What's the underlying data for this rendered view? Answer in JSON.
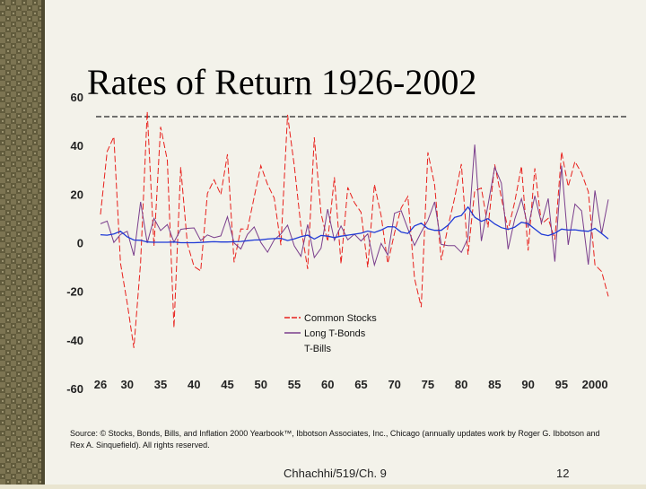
{
  "slide": {
    "title": "Rates of Return 1926-2002",
    "source_text": "Source: © Stocks, Bonds, Bills, and Inflation 2000 Yearbook™, Ibbotson Associates, Inc., Chicago (annually updates work by Roger G. Ibbotson and Rex A. Sinquefield). All rights reserved.",
    "footer_left": "Chhachhi/519/Ch. 9",
    "page_number": "12"
  },
  "colors": {
    "stocks": "#e8201c",
    "bonds": "#7a3e8c",
    "bills": "#1f3ad6",
    "bar": "#6f6a4a"
  },
  "chart_data": {
    "type": "line",
    "title": "Rates of Return 1926-2002",
    "x_ticks": [
      "26",
      "30",
      "35",
      "40",
      "45",
      "50",
      "55",
      "60",
      "65",
      "70",
      "75",
      "80",
      "85",
      "90",
      "95",
      "2000"
    ],
    "x_tick_years": [
      1926,
      1930,
      1935,
      1940,
      1945,
      1950,
      1955,
      1960,
      1965,
      1970,
      1975,
      1980,
      1985,
      1990,
      1995,
      2000
    ],
    "y_ticks": [
      "60",
      "40",
      "20",
      "0",
      "-20",
      "-40",
      "-60"
    ],
    "y_tick_values": [
      60,
      40,
      20,
      0,
      -20,
      -40,
      -60
    ],
    "xlim": [
      1926,
      2002
    ],
    "ylim": [
      -60,
      60
    ],
    "legend": [
      "Common Stocks",
      "Long T-Bonds",
      "T-Bills"
    ],
    "series": [
      {
        "name": "Common Stocks",
        "style": "dashed",
        "years": [
          1926,
          1927,
          1928,
          1929,
          1930,
          1931,
          1932,
          1933,
          1934,
          1935,
          1936,
          1937,
          1938,
          1939,
          1940,
          1941,
          1942,
          1943,
          1944,
          1945,
          1946,
          1947,
          1948,
          1949,
          1950,
          1951,
          1952,
          1953,
          1954,
          1955,
          1956,
          1957,
          1958,
          1959,
          1960,
          1961,
          1962,
          1963,
          1964,
          1965,
          1966,
          1967,
          1968,
          1969,
          1970,
          1971,
          1972,
          1973,
          1974,
          1975,
          1976,
          1977,
          1978,
          1979,
          1980,
          1981,
          1982,
          1983,
          1984,
          1985,
          1986,
          1987,
          1988,
          1989,
          1990,
          1991,
          1992,
          1993,
          1994,
          1995,
          1996,
          1997,
          1998,
          1999,
          2000,
          2001,
          2002
        ],
        "values": [
          11.6,
          37.5,
          43.6,
          -8.4,
          -24.9,
          -43.3,
          -8.2,
          54.0,
          -1.4,
          47.7,
          33.9,
          -35.0,
          31.1,
          -0.4,
          -9.8,
          -11.6,
          20.3,
          25.9,
          19.8,
          36.4,
          -8.1,
          5.7,
          5.5,
          18.8,
          31.7,
          24.0,
          18.4,
          -1.0,
          52.6,
          31.6,
          6.6,
          -10.8,
          43.4,
          12.0,
          0.5,
          26.9,
          -8.7,
          22.8,
          16.5,
          12.5,
          -10.1,
          24.0,
          11.1,
          -8.5,
          4.0,
          14.3,
          19.0,
          -14.7,
          -26.5,
          37.2,
          23.8,
          -7.2,
          6.6,
          18.4,
          32.4,
          -4.9,
          21.4,
          22.5,
          6.3,
          32.2,
          18.5,
          5.2,
          16.8,
          31.5,
          -3.2,
          30.6,
          7.7,
          10.0,
          1.3,
          37.4,
          23.1,
          33.4,
          28.6,
          21.0,
          -9.1,
          -11.9,
          -22.1
        ]
      },
      {
        "name": "Long T-Bonds",
        "style": "solid",
        "years": [
          1926,
          1927,
          1928,
          1929,
          1930,
          1931,
          1932,
          1933,
          1934,
          1935,
          1936,
          1937,
          1938,
          1939,
          1940,
          1941,
          1942,
          1943,
          1944,
          1945,
          1946,
          1947,
          1948,
          1949,
          1950,
          1951,
          1952,
          1953,
          1954,
          1955,
          1956,
          1957,
          1958,
          1959,
          1960,
          1961,
          1962,
          1963,
          1964,
          1965,
          1966,
          1967,
          1968,
          1969,
          1970,
          1971,
          1972,
          1973,
          1974,
          1975,
          1976,
          1977,
          1978,
          1979,
          1980,
          1981,
          1982,
          1983,
          1984,
          1985,
          1986,
          1987,
          1988,
          1989,
          1990,
          1991,
          1992,
          1993,
          1994,
          1995,
          1996,
          1997,
          1998,
          1999,
          2000,
          2001,
          2002
        ],
        "values": [
          7.8,
          8.9,
          0.1,
          3.4,
          4.7,
          -5.3,
          16.8,
          -0.1,
          10.0,
          5.0,
          7.5,
          0.2,
          5.5,
          5.9,
          6.1,
          0.9,
          3.2,
          2.1,
          2.8,
          10.7,
          -0.1,
          -2.6,
          3.4,
          6.5,
          0.1,
          -3.9,
          1.2,
          3.6,
          7.2,
          -1.3,
          -5.6,
          7.5,
          -6.1,
          -2.3,
          13.8,
          1.0,
          6.9,
          1.2,
          3.5,
          0.7,
          3.7,
          -9.2,
          -0.3,
          -5.1,
          12.1,
          13.2,
          5.7,
          -1.1,
          4.4,
          9.2,
          16.8,
          -0.7,
          -1.2,
          -1.2,
          -4.0,
          1.9,
          40.4,
          0.7,
          15.5,
          31.0,
          24.5,
          -2.7,
          9.7,
          18.1,
          6.2,
          19.3,
          8.1,
          18.2,
          -7.8,
          31.7,
          -0.9,
          15.9,
          13.1,
          -9.0,
          21.5,
          3.7,
          17.8
        ]
      },
      {
        "name": "T-Bills",
        "style": "solid",
        "years": [
          1926,
          1927,
          1928,
          1929,
          1930,
          1931,
          1932,
          1933,
          1934,
          1935,
          1936,
          1937,
          1938,
          1939,
          1940,
          1941,
          1942,
          1943,
          1944,
          1945,
          1946,
          1947,
          1948,
          1949,
          1950,
          1951,
          1952,
          1953,
          1954,
          1955,
          1956,
          1957,
          1958,
          1959,
          1960,
          1961,
          1962,
          1963,
          1964,
          1965,
          1966,
          1967,
          1968,
          1969,
          1970,
          1971,
          1972,
          1973,
          1974,
          1975,
          1976,
          1977,
          1978,
          1979,
          1980,
          1981,
          1982,
          1983,
          1984,
          1985,
          1986,
          1987,
          1988,
          1989,
          1990,
          1991,
          1992,
          1993,
          1994,
          1995,
          1996,
          1997,
          1998,
          1999,
          2000,
          2001,
          2002
        ],
        "values": [
          3.3,
          3.1,
          3.6,
          4.7,
          2.4,
          1.1,
          1.0,
          0.3,
          0.2,
          0.2,
          0.2,
          0.3,
          0.0,
          0.0,
          0.0,
          0.1,
          0.3,
          0.4,
          0.3,
          0.3,
          0.4,
          0.5,
          0.8,
          1.1,
          1.2,
          1.5,
          1.7,
          1.8,
          0.9,
          1.6,
          2.5,
          3.1,
          1.5,
          3.0,
          2.7,
          2.1,
          2.7,
          3.1,
          3.5,
          3.9,
          4.8,
          4.2,
          5.2,
          6.6,
          6.5,
          4.4,
          3.8,
          6.9,
          8.0,
          5.8,
          5.1,
          5.1,
          7.2,
          10.4,
          11.2,
          14.7,
          10.5,
          8.8,
          9.9,
          7.7,
          6.2,
          5.5,
          6.4,
          8.4,
          7.8,
          5.6,
          3.5,
          2.9,
          3.9,
          5.6,
          5.2,
          5.3,
          4.9,
          4.7,
          5.9,
          3.8,
          1.6
        ]
      }
    ]
  }
}
